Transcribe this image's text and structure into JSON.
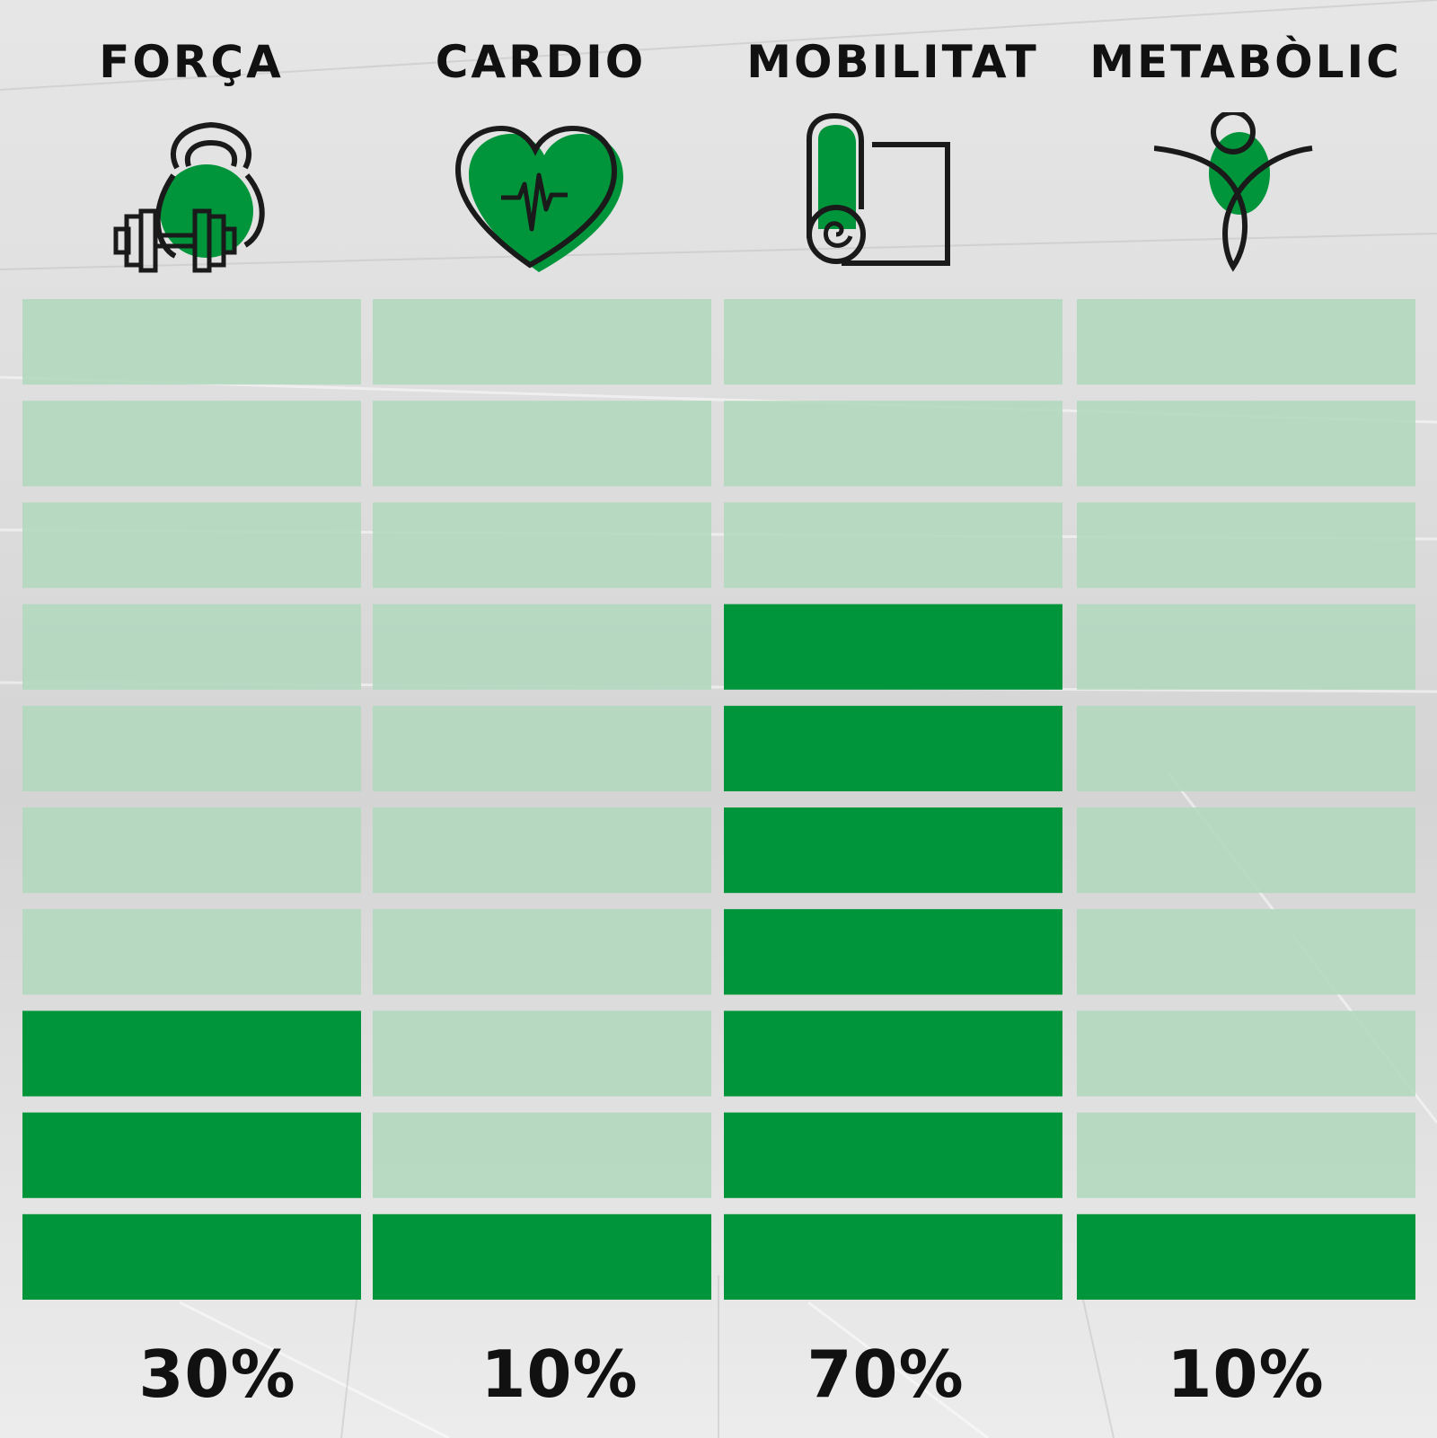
{
  "colors": {
    "filled": "#00953A",
    "empty": "#B2D8BF",
    "icon_stroke": "#1a1a1a"
  },
  "chart_data": {
    "type": "bar",
    "segments_per_bar": 10,
    "categories": [
      "FORÇA",
      "CARDIO",
      "MOBILITAT",
      "METABÒLIC"
    ],
    "values": [
      30,
      10,
      70,
      10
    ],
    "value_labels": [
      "30%",
      "10%",
      "70%",
      "10%"
    ],
    "ylim": [
      0,
      100
    ],
    "icons": [
      "kettlebell-dumbbell-icon",
      "heart-pulse-icon",
      "yoga-mat-icon",
      "body-figure-icon"
    ]
  }
}
